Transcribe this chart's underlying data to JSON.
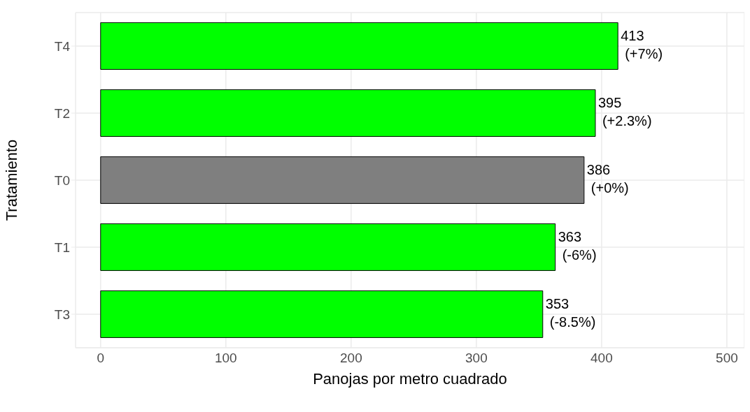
{
  "chart_data": {
    "type": "bar",
    "orientation": "horizontal",
    "xlabel": "Panojas por metro cuadrado",
    "ylabel": "Tratamiento",
    "categories": [
      "T4",
      "T2",
      "T0",
      "T1",
      "T3"
    ],
    "values": [
      413,
      395,
      386,
      363,
      353
    ],
    "colors": [
      "#00ff00",
      "#00ff00",
      "#7f7f7f",
      "#00ff00",
      "#00ff00"
    ],
    "value_labels": [
      "413\n(+7%)",
      "395\n(+2.3%)",
      "386\n(+0%)",
      "363\n(-6%)",
      "353\n(-8.5%)"
    ],
    "xlim": [
      -20,
      514
    ],
    "xticks": [
      0,
      100,
      200,
      300,
      400,
      500
    ],
    "grid": true
  }
}
